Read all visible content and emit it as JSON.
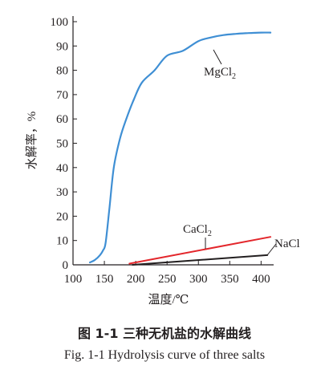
{
  "chart_data": {
    "type": "line",
    "xlabel": "温度/℃",
    "ylabel": "水解率，%",
    "xlim": [
      100,
      420
    ],
    "ylim": [
      0,
      100
    ],
    "x_ticks": [
      100,
      150,
      200,
      250,
      300,
      350,
      400
    ],
    "y_ticks": [
      0,
      10,
      20,
      30,
      40,
      50,
      60,
      70,
      80,
      90,
      100
    ],
    "grid": false,
    "series": [
      {
        "name": "MgCl",
        "name_sub": "2",
        "color": "#3f8fd4",
        "x": [
          127,
          135,
          143,
          148,
          152,
          158,
          165,
          175,
          185,
          197,
          210,
          230,
          250,
          275,
          300,
          320,
          340,
          360,
          380,
          400,
          415
        ],
        "y": [
          1,
          2,
          4,
          6,
          9,
          23,
          40,
          52,
          60,
          68,
          75,
          80,
          86,
          88,
          92,
          93.5,
          94.5,
          95,
          95.3,
          95.5,
          95.5
        ]
      },
      {
        "name": "CaCl",
        "name_sub": "2",
        "color": "#e3262b",
        "x": [
          190,
          415
        ],
        "y": [
          0.5,
          11.5
        ]
      },
      {
        "name": "NaCl",
        "name_sub": "",
        "color": "#231f20",
        "x": [
          195,
          410
        ],
        "y": [
          0,
          4
        ]
      }
    ]
  },
  "caption": {
    "chinese": "图 1-1 三种无机盐的水解曲线",
    "english": "Fig. 1-1 Hydrolysis curve of three salts"
  }
}
